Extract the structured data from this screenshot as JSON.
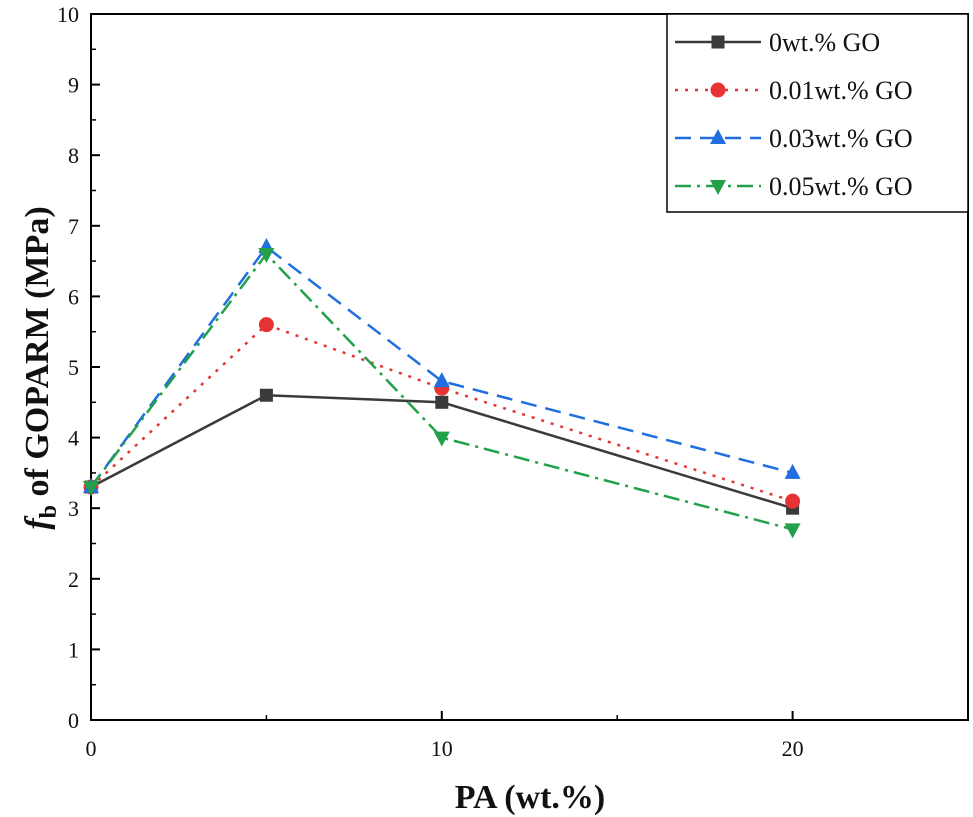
{
  "chart_data": {
    "type": "line",
    "title": "",
    "xlabel": "PA (wt.%)",
    "ylabel_symbol": "f",
    "ylabel_subscript": "b",
    "ylabel_rest": " of GOPARM (MPa)",
    "x": [
      0,
      5,
      10,
      20
    ],
    "xlim": [
      0,
      25
    ],
    "ylim": [
      0,
      10
    ],
    "xticks": [
      0,
      10,
      20
    ],
    "xminor": [
      5,
      15,
      25
    ],
    "yticks": [
      0,
      1,
      2,
      3,
      4,
      5,
      6,
      7,
      8,
      9,
      10
    ],
    "grid": false,
    "legend_position": "top-right",
    "series": [
      {
        "name": "0wt.% GO",
        "values": [
          3.3,
          4.6,
          4.5,
          3.0
        ],
        "color": "#3a3a3a",
        "dash": "solid",
        "marker": "square"
      },
      {
        "name": "0.01wt.% GO",
        "values": [
          3.3,
          5.6,
          4.7,
          3.1
        ],
        "color": "#e63434",
        "dash": "dot",
        "marker": "circle"
      },
      {
        "name": "0.03wt.% GO",
        "values": [
          3.3,
          6.7,
          4.8,
          3.5
        ],
        "color": "#1f6fe0",
        "dash": "dash",
        "marker": "triangle-up"
      },
      {
        "name": "0.05wt.% GO",
        "values": [
          3.3,
          6.6,
          4.0,
          2.7
        ],
        "color": "#22a04a",
        "dash": "dashdot",
        "marker": "triangle-down"
      }
    ]
  }
}
